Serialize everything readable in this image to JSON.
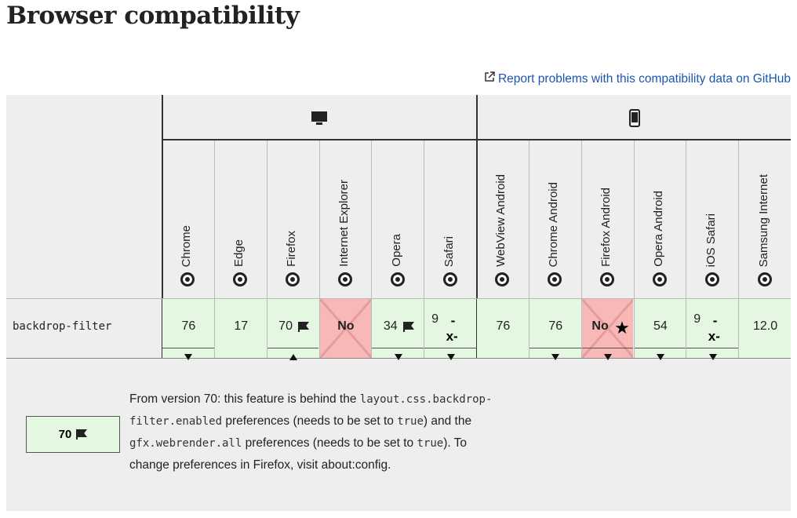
{
  "header": {
    "title": "Browser compatibility",
    "report_link": "Report problems with this compatibility data on GitHub"
  },
  "table": {
    "browsers": [
      "Chrome",
      "Edge",
      "Firefox",
      "Internet Explorer",
      "Opera",
      "Safari",
      "WebView Android",
      "Chrome Android",
      "Firefox Android",
      "Opera Android",
      "iOS Safari",
      "Samsung Internet"
    ],
    "feature": "backdrop-filter",
    "cells": [
      {
        "version": "76",
        "supported": true,
        "toggle": "down"
      },
      {
        "version": "17",
        "supported": true
      },
      {
        "version": "70",
        "supported": true,
        "flag": true,
        "toggle": "up"
      },
      {
        "version": "No",
        "supported": false
      },
      {
        "version": "34",
        "supported": true,
        "flag": true,
        "toggle": "down"
      },
      {
        "version": "9",
        "supported": true,
        "prefix": [
          "-",
          "x-"
        ],
        "toggle": "down"
      },
      {
        "version": "76",
        "supported": true
      },
      {
        "version": "76",
        "supported": true,
        "toggle": "down"
      },
      {
        "version": "No",
        "supported": false,
        "star": true,
        "toggle": "down"
      },
      {
        "version": "54",
        "supported": true,
        "toggle": "down"
      },
      {
        "version": "9",
        "supported": true,
        "prefix": [
          "-",
          "x-"
        ],
        "toggle": "down"
      },
      {
        "version": "12.0",
        "supported": true
      }
    ]
  },
  "detail": {
    "version": "70",
    "note": [
      {
        "text": "From version 70: this feature is behind the "
      },
      {
        "code": "layout.css.backdrop-filter.enabled"
      },
      {
        "text": " preferences (needs to be set to "
      },
      {
        "code": "true"
      },
      {
        "text": ") and the "
      },
      {
        "code": "gfx.webrender.all"
      },
      {
        "text": " preferences (needs to be set to "
      },
      {
        "code": "true"
      },
      {
        "text": "). To change preferences in Firefox, visit about:config."
      }
    ]
  }
}
